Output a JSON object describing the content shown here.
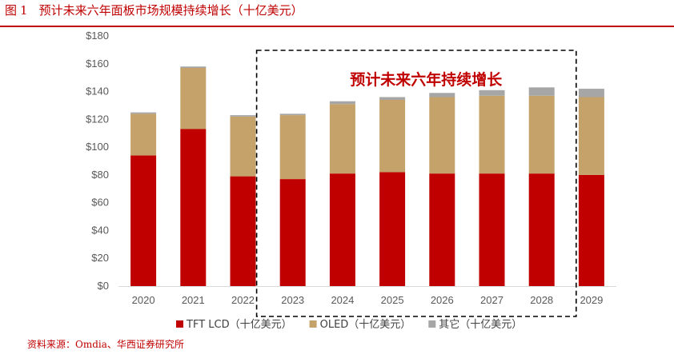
{
  "header": {
    "figure_label": "图",
    "figure_number": "1",
    "title": "预计未来六年面板市场规模持续增长（十亿美元）"
  },
  "source": "资料来源：Omdia、华西证券研究所",
  "colors": {
    "tft_lcd": "#c00000",
    "oled": "#c4a26a",
    "other": "#a6a6a6",
    "accent": "#c00000"
  },
  "chart_data": {
    "type": "bar",
    "stacked": true,
    "title": "预计未来六年面板市场规模持续增长（十亿美元）",
    "categories": [
      "2020",
      "2021",
      "2022",
      "2023",
      "2024",
      "2025",
      "2026",
      "2027",
      "2028",
      "2029"
    ],
    "series": [
      {
        "name": "TFT LCD（十亿美元）",
        "key": "tft_lcd",
        "values": [
          94,
          113,
          79,
          77,
          81,
          82,
          81,
          81,
          81,
          80
        ]
      },
      {
        "name": "OLED（十亿美元）",
        "key": "oled",
        "values": [
          30,
          44,
          43,
          46,
          50,
          52,
          55,
          56,
          56,
          56
        ]
      },
      {
        "name": "其它（十亿美元）",
        "key": "other",
        "values": [
          1,
          1,
          1,
          1,
          2,
          2,
          3,
          4,
          6,
          6
        ]
      }
    ],
    "y_ticks": [
      "$0",
      "$20",
      "$40",
      "$60",
      "$80",
      "$100",
      "$120",
      "$140",
      "$160",
      "$180"
    ],
    "ylim": [
      0,
      180
    ],
    "xlabel": "",
    "ylabel": "",
    "grid": false,
    "legend_position": "bottom",
    "annotation": {
      "text": "预计未来六年持续增长",
      "covers": [
        "2023",
        "2028"
      ]
    }
  }
}
